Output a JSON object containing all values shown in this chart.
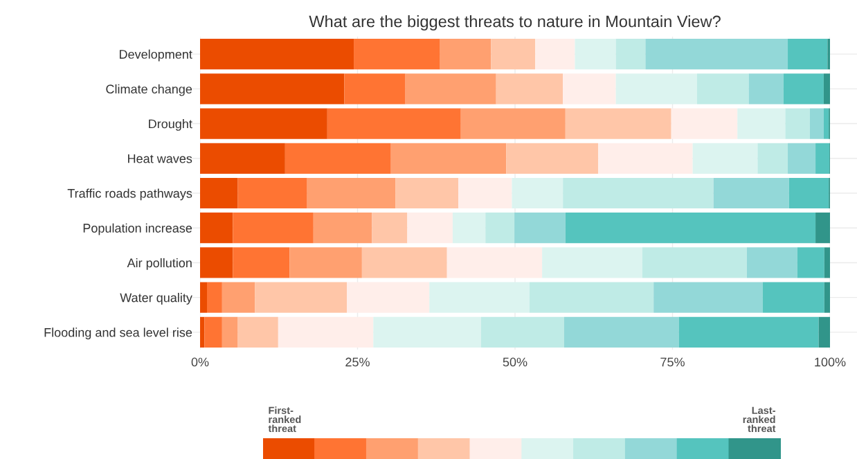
{
  "chart_data": {
    "type": "bar",
    "orientation": "horizontal",
    "stacked": true,
    "title": "What are the biggest threats to nature in Mountain View?",
    "categories": [
      "Development",
      "Climate change",
      "Drought",
      "Heat waves",
      "Traffic roads pathways",
      "Population increase",
      "Air pollution",
      "Water quality",
      "Flooding and sea level rise"
    ],
    "series": [
      {
        "color": "#eb4c00",
        "values": [
          24.4,
          22.9,
          20.2,
          13.5,
          6.0,
          5.2,
          5.2,
          1.1,
          0.7
        ]
      },
      {
        "color": "#ff7433",
        "values": [
          13.7,
          9.7,
          21.2,
          16.8,
          11.0,
          12.8,
          9.0,
          2.4,
          2.8
        ]
      },
      {
        "color": "#ffa070",
        "values": [
          8.1,
          14.4,
          16.6,
          18.3,
          14.0,
          9.3,
          11.5,
          5.2,
          2.5
        ]
      },
      {
        "color": "#ffc6a8",
        "values": [
          7.0,
          10.6,
          16.8,
          14.6,
          10.0,
          5.6,
          13.5,
          14.6,
          6.4
        ]
      },
      {
        "color": "#ffeeea",
        "values": [
          6.3,
          8.4,
          10.5,
          15.0,
          8.5,
          7.2,
          15.1,
          13.1,
          15.1
        ]
      },
      {
        "color": "#dcf4f0",
        "values": [
          6.5,
          12.9,
          7.6,
          10.3,
          8.1,
          5.2,
          15.9,
          15.9,
          17.1
        ]
      },
      {
        "color": "#bfebe6",
        "values": [
          4.7,
          8.2,
          3.9,
          4.8,
          23.9,
          4.6,
          16.6,
          19.7,
          13.2
        ]
      },
      {
        "color": "#93d8d8",
        "values": [
          22.6,
          5.5,
          2.2,
          4.4,
          12.0,
          8.1,
          8.0,
          17.3,
          18.2
        ]
      },
      {
        "color": "#55c4be",
        "values": [
          6.3,
          6.4,
          0.8,
          2.2,
          6.3,
          39.7,
          4.3,
          9.8,
          22.2
        ]
      },
      {
        "color": "#31958a",
        "values": [
          0.4,
          1.0,
          0.2,
          0.1,
          0.2,
          2.3,
          0.9,
          0.9,
          1.8
        ]
      }
    ],
    "xlim": [
      0,
      100
    ],
    "xticks": [
      {
        "value": 0,
        "label": "0%"
      },
      {
        "value": 25,
        "label": "25%"
      },
      {
        "value": 50,
        "label": "50%"
      },
      {
        "value": 75,
        "label": "75%"
      },
      {
        "value": 100,
        "label": "100%"
      }
    ],
    "grid": true,
    "annotations": [
      "First-\nranked\nthreat",
      "Last-\nranked\nthreat"
    ]
  }
}
